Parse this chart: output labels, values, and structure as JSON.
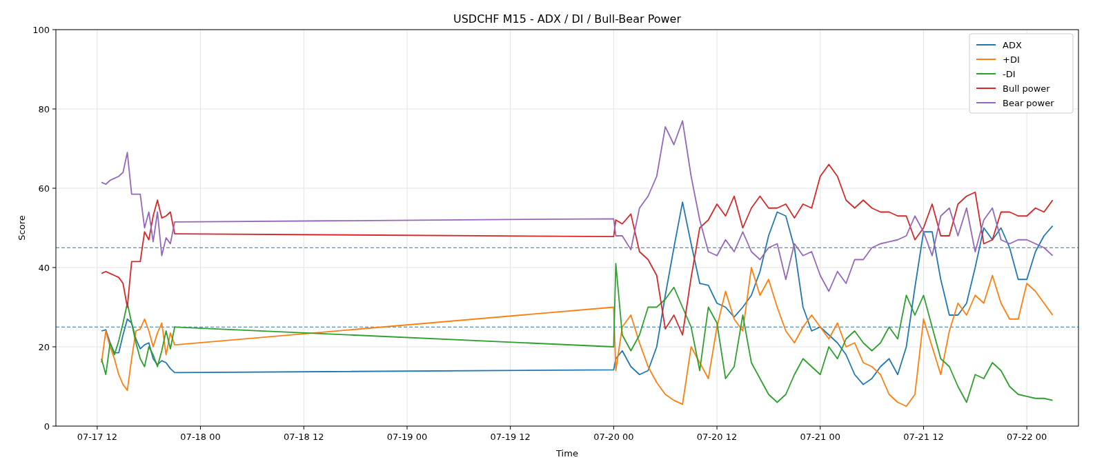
{
  "chart_data": {
    "type": "line",
    "title": "USDCHF M15 - ADX / DI / Bull-Bear Power",
    "xlabel": "Time",
    "ylabel": "Score",
    "x": [
      "--07-17T12:30",
      "--07-17T13:00",
      "--07-17T13:30",
      "--07-17T14:00",
      "--07-17T14:30",
      "--07-17T15:00",
      "--07-17T15:30",
      "--07-17T16:00",
      "--07-17T16:30",
      "--07-17T17:00",
      "--07-17T17:30",
      "--07-17T18:00",
      "--07-17T18:30",
      "--07-17T19:00",
      "--07-17T19:30",
      "--07-17T20:00",
      "--07-17T20:30",
      "--07-17T21:00",
      "--07-20T00:00",
      "--07-20T00:15",
      "--07-20T01:00",
      "--07-20T02:00",
      "--07-20T03:00",
      "--07-20T04:00",
      "--07-20T05:00",
      "--07-20T06:00",
      "--07-20T07:00",
      "--07-20T08:00",
      "--07-20T09:00",
      "--07-20T10:00",
      "--07-20T11:00",
      "--07-20T12:00",
      "--07-20T13:00",
      "--07-20T14:00",
      "--07-20T15:00",
      "--07-20T16:00",
      "--07-20T17:00",
      "--07-20T18:00",
      "--07-20T19:00",
      "--07-20T20:00",
      "--07-20T21:00",
      "--07-20T22:00",
      "--07-20T23:00",
      "--07-21T00:00",
      "--07-21T01:00",
      "--07-21T02:00",
      "--07-21T03:00",
      "--07-21T04:00",
      "--07-21T05:00",
      "--07-21T06:00",
      "--07-21T07:00",
      "--07-21T08:00",
      "--07-21T09:00",
      "--07-21T10:00",
      "--07-21T11:00",
      "--07-21T12:00",
      "--07-21T13:00",
      "--07-21T14:00",
      "--07-21T15:00",
      "--07-21T16:00",
      "--07-21T17:00",
      "--07-21T18:00",
      "--07-21T19:00",
      "--07-21T20:00",
      "--07-21T21:00",
      "--07-21T22:00",
      "--07-21T23:00",
      "--07-22T00:00",
      "--07-22T01:00",
      "--07-22T02:00",
      "--07-22T03:00"
    ],
    "xlim": [
      "--07-17T07:12",
      "--07-22T06:00"
    ],
    "xticks": [
      {
        "value": "--07-17T12:00",
        "label": "07-17 12"
      },
      {
        "value": "--07-18T00:00",
        "label": "07-18 00"
      },
      {
        "value": "--07-18T12:00",
        "label": "07-18 12"
      },
      {
        "value": "--07-19T00:00",
        "label": "07-19 00"
      },
      {
        "value": "--07-19T12:00",
        "label": "07-19 12"
      },
      {
        "value": "--07-20T00:00",
        "label": "07-20 00"
      },
      {
        "value": "--07-20T12:00",
        "label": "07-20 12"
      },
      {
        "value": "--07-21T00:00",
        "label": "07-21 00"
      },
      {
        "value": "--07-21T12:00",
        "label": "07-21 12"
      },
      {
        "value": "--07-22T00:00",
        "label": "07-22 00"
      }
    ],
    "ylim": [
      0,
      100
    ],
    "yticks": [
      0,
      20,
      40,
      60,
      80,
      100
    ],
    "grid": true,
    "legend": "top right",
    "line_style": "solid",
    "ref_lines": [
      {
        "axis": "y",
        "value": 45,
        "color": "#1f77b4",
        "line_style": "dashed"
      },
      {
        "axis": "y",
        "value": 25,
        "color": "#1f77b4",
        "line_style": "dashed"
      }
    ],
    "series": [
      {
        "name": "ADX",
        "color": "#1f77b4",
        "values": [
          24,
          24.3,
          21,
          18.5,
          18.5,
          23,
          27,
          26,
          22,
          19.5,
          20.5,
          21,
          17,
          15.5,
          16.5,
          16,
          14.5,
          13.5,
          14.2,
          17,
          19,
          15,
          13,
          14,
          20,
          33,
          45,
          56.5,
          46,
          36,
          35.5,
          31,
          30,
          27.5,
          30,
          33,
          39,
          48,
          54,
          53,
          45,
          30,
          24,
          25,
          23,
          21,
          18,
          13,
          10.5,
          12,
          15,
          17,
          13,
          20,
          35,
          49,
          49,
          37,
          28,
          28,
          31,
          40,
          50,
          47,
          50,
          45,
          37,
          37,
          44,
          48,
          50.5
        ]
      },
      {
        "name": "+DI",
        "color": "#ff7f0e",
        "values": [
          16,
          24,
          20,
          17,
          13,
          10.5,
          9,
          17,
          24,
          24.5,
          27,
          24,
          20,
          23.5,
          26,
          18,
          23.5,
          20.5,
          30,
          14,
          25,
          28,
          21,
          15,
          11,
          8,
          6.5,
          5.5,
          20,
          16,
          12,
          25,
          34,
          27,
          24,
          40,
          33,
          37,
          30,
          24,
          21,
          25,
          28,
          25,
          22,
          26,
          20,
          21,
          16,
          15,
          13,
          8,
          6,
          5,
          8,
          27,
          20,
          13,
          24,
          31,
          28,
          33,
          31,
          38,
          31,
          27,
          27,
          36,
          34,
          31,
          28
        ]
      },
      {
        "name": "-DI",
        "color": "#2ca02c",
        "values": [
          17,
          13,
          21,
          18,
          21.5,
          26,
          31,
          26,
          21,
          17,
          15,
          20,
          18,
          15,
          19,
          24,
          19.5,
          25,
          20,
          41,
          23,
          19,
          23,
          30,
          30,
          32,
          35,
          30,
          25,
          14,
          30,
          26,
          12,
          15,
          28,
          16,
          12,
          8,
          6,
          8,
          13,
          17,
          15,
          13,
          20,
          17,
          22,
          24,
          21,
          19,
          21,
          25,
          22,
          33,
          28,
          33,
          25,
          17,
          15,
          10,
          6,
          13,
          12,
          16,
          14,
          10,
          8,
          7.5,
          7,
          7,
          6.5
        ]
      },
      {
        "name": "Bull power",
        "color": "#d62728",
        "values": [
          38.5,
          39,
          38.5,
          38,
          37.5,
          36,
          30,
          41.5,
          41.5,
          41.5,
          49,
          47,
          53,
          57,
          52.5,
          53,
          54,
          48.5,
          47.8,
          52,
          51,
          53.5,
          44,
          42,
          38,
          24.5,
          28,
          23,
          37.5,
          50,
          52,
          56,
          53,
          58,
          50,
          55,
          58,
          55,
          55,
          56,
          52.5,
          56,
          55,
          63,
          66,
          63,
          57,
          55,
          57,
          55,
          54,
          54,
          53,
          53,
          47,
          50,
          56,
          48,
          48,
          56,
          58,
          59,
          46,
          47,
          54,
          54,
          53,
          53,
          55,
          54,
          57
        ]
      },
      {
        "name": "Bear power",
        "color": "#9467bd",
        "values": [
          61.5,
          61,
          62,
          62.5,
          63,
          64,
          69,
          58.5,
          58.5,
          58.5,
          50,
          54,
          46.5,
          54,
          43,
          47.5,
          46,
          51.5,
          52.3,
          48,
          48,
          44.5,
          55,
          58,
          63,
          75.5,
          71,
          77,
          63,
          52,
          44,
          43,
          47,
          44,
          49,
          44,
          42,
          45,
          46,
          37,
          46,
          43,
          44,
          38,
          34,
          39,
          36,
          42,
          42,
          45,
          46,
          46.5,
          47,
          48,
          53,
          49,
          43,
          53,
          55,
          48,
          55,
          44,
          52,
          55,
          47,
          46,
          47,
          47,
          46,
          45,
          43
        ]
      }
    ]
  }
}
